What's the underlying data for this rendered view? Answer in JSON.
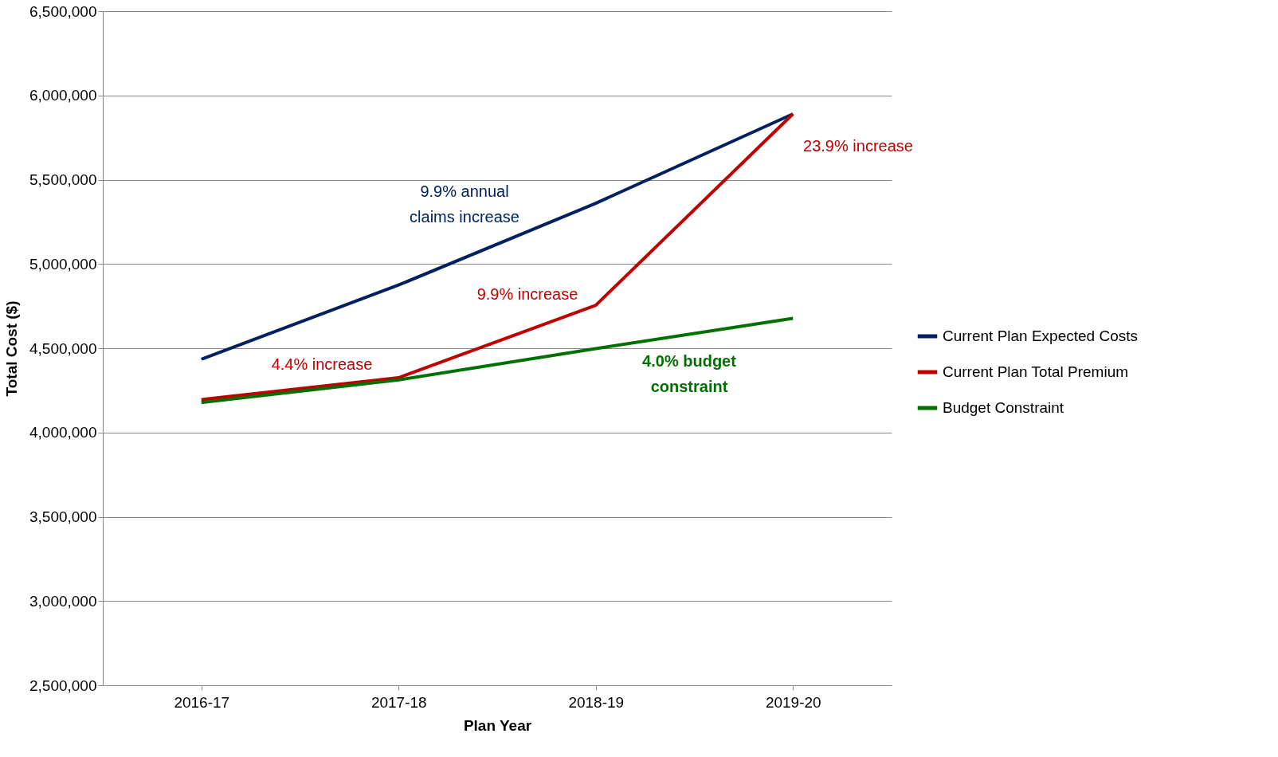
{
  "chart_data": {
    "type": "line",
    "xlabel": "Plan Year",
    "ylabel": "Total Cost ($)",
    "categories": [
      "2016-17",
      "2017-18",
      "2018-19",
      "2019-20"
    ],
    "series": [
      {
        "name": "Current Plan Expected Costs",
        "color": "#002060",
        "values": [
          4435000,
          4875000,
          5360000,
          5890000
        ]
      },
      {
        "name": "Current Plan Total Premium",
        "color": "#c00000",
        "values": [
          4195000,
          4325000,
          4755000,
          5890000
        ]
      },
      {
        "name": "Budget Constraint",
        "color": "#007000",
        "values": [
          4178000,
          4312000,
          4498000,
          4677000
        ]
      }
    ],
    "ylim": [
      2500000,
      6500000
    ],
    "yticks": [
      {
        "value": 2500000,
        "label": "2,500,000"
      },
      {
        "value": 3000000,
        "label": "3,000,000"
      },
      {
        "value": 3500000,
        "label": "3,500,000"
      },
      {
        "value": 4000000,
        "label": "4,000,000"
      },
      {
        "value": 4500000,
        "label": "4,500,000"
      },
      {
        "value": 5000000,
        "label": "5,000,000"
      },
      {
        "value": 5500000,
        "label": "5,500,000"
      },
      {
        "value": 6000000,
        "label": "6,000,000"
      },
      {
        "value": 6500000,
        "label": "6,500,000"
      }
    ],
    "grid": "y",
    "legend": "right",
    "marker": "none",
    "line_style": "solid",
    "annotations": [
      "9.9% annual\nclaims increase",
      "4.4% increase",
      "9.9% increase",
      "23.9% increase",
      "4.0% budget\nconstraint"
    ]
  }
}
